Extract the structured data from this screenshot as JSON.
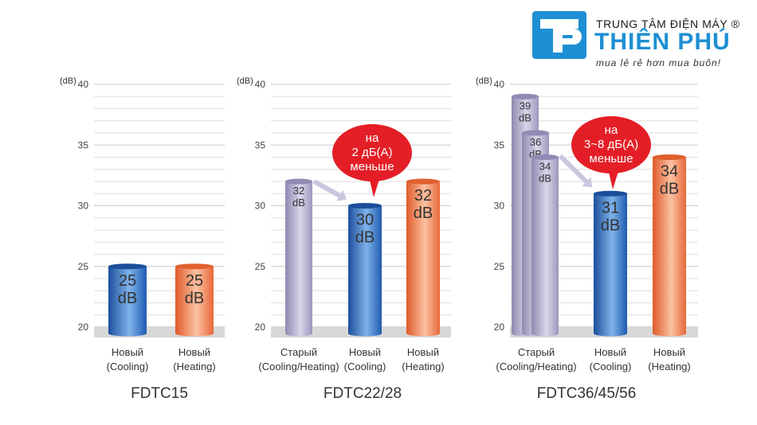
{
  "brand": {
    "line1": "TRUNG TÂM ĐIỆN MÁY ®",
    "line2": "THIÊN PHÚ",
    "line3": "mua lẻ rẻ hơn mua buôn!",
    "color": "#1e8fd3"
  },
  "colors": {
    "old": "#aaa7c8",
    "new_cooling": "#2f6fc2",
    "new_heating": "#f08a5e",
    "callout": "#e41e26",
    "floor": "#d8d8d8"
  },
  "chart_data": [
    {
      "type": "bar",
      "title": "FDTC15",
      "ylabel": "(dB)",
      "ylim": [
        20,
        40
      ],
      "yticks": [
        "20",
        "25",
        "30",
        "35",
        "40"
      ],
      "grid": true,
      "bars": [
        {
          "value": 25,
          "label_top": "25",
          "label_bottom": "dB",
          "category": [
            "Новый",
            "(Cooling)"
          ],
          "kind": "new_cooling"
        },
        {
          "value": 25,
          "label_top": "25",
          "label_bottom": "dB",
          "category": [
            "Новый",
            "(Heating)"
          ],
          "kind": "new_heating"
        }
      ]
    },
    {
      "type": "bar",
      "title": "FDTC22/28",
      "ylabel": "(dB)",
      "ylim": [
        20,
        40
      ],
      "yticks": [
        "20",
        "25",
        "30",
        "35",
        "40"
      ],
      "grid": true,
      "bars": [
        {
          "value": 32,
          "label_top": "32",
          "label_bottom": "dB",
          "category": [
            "Старый",
            "(Cooling/Heating)"
          ],
          "kind": "old"
        },
        {
          "value": 30,
          "label_top": "30",
          "label_bottom": "dB",
          "category": [
            "Новый",
            "(Cooling)"
          ],
          "kind": "new_cooling"
        },
        {
          "value": 32,
          "label_top": "32",
          "label_bottom": "dB",
          "category": [
            "Новый",
            "(Heating)"
          ],
          "kind": "new_heating"
        }
      ],
      "callout": [
        "на",
        "2 дБ(A)",
        "меньше"
      ]
    },
    {
      "type": "bar",
      "title": "FDTC36/45/56",
      "ylabel": "(dB)",
      "ylim": [
        20,
        40
      ],
      "yticks": [
        "20",
        "25",
        "30",
        "35",
        "40"
      ],
      "grid": true,
      "bars": [
        {
          "value": 39,
          "label_top": "39",
          "label_bottom": "dB",
          "category": [
            "Старый",
            "(Cooling/Heating)"
          ],
          "kind": "old"
        },
        {
          "value": 36,
          "label_top": "36",
          "label_bottom": "dB",
          "category": [],
          "kind": "old"
        },
        {
          "value": 34,
          "label_top": "34",
          "label_bottom": "dB",
          "category": [],
          "kind": "old"
        },
        {
          "value": 31,
          "label_top": "31",
          "label_bottom": "dB",
          "category": [
            "Новый",
            "(Cooling)"
          ],
          "kind": "new_cooling"
        },
        {
          "value": 34,
          "label_top": "34",
          "label_bottom": "dB",
          "category": [
            "Новый",
            "(Heating)"
          ],
          "kind": "new_heating"
        }
      ],
      "callout": [
        "на",
        "3~8 дБ(A)",
        "меньше"
      ]
    }
  ]
}
